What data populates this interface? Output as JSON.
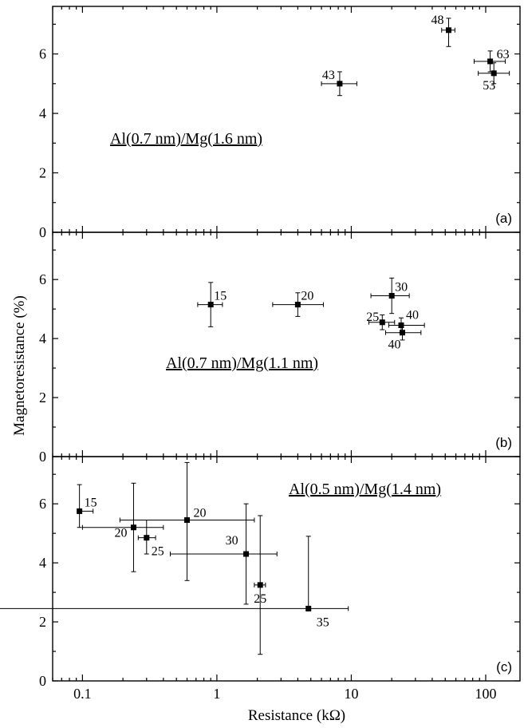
{
  "chart_data": [
    {
      "panel": "(a)",
      "type": "scatter",
      "annotation": "Al(0.7 nm)/Mg(1.6 nm)",
      "xscale": "log",
      "xlim": [
        0.06,
        180
      ],
      "ylim": [
        0,
        7.6
      ],
      "y_ticks": [
        "0",
        "2",
        "4",
        "6"
      ],
      "points": [
        {
          "label": "43",
          "x": 8.2,
          "y": 5.0,
          "xerr": [
            6.0,
            11.0
          ],
          "yerr": [
            4.6,
            5.4
          ]
        },
        {
          "label": "48",
          "x": 53,
          "y": 6.8,
          "xerr": [
            47,
            59
          ],
          "yerr": [
            6.25,
            7.2
          ]
        },
        {
          "label": "63",
          "x": 108,
          "y": 5.75,
          "xerr": [
            82,
            140
          ],
          "yerr": [
            5.4,
            6.1
          ]
        },
        {
          "label": "53",
          "x": 115,
          "y": 5.35,
          "xerr": [
            88,
            150
          ],
          "yerr": [
            5.0,
            5.7
          ]
        }
      ]
    },
    {
      "panel": "(b)",
      "type": "scatter",
      "annotation": "Al(0.7 nm)/Mg(1.1 nm)",
      "xscale": "log",
      "xlim": [
        0.06,
        180
      ],
      "ylim": [
        0,
        7.6
      ],
      "y_ticks": [
        "0",
        "2",
        "4",
        "6"
      ],
      "points": [
        {
          "label": "15",
          "x": 0.9,
          "y": 5.15,
          "xerr": [
            0.72,
            1.1
          ],
          "yerr": [
            4.4,
            5.9
          ]
        },
        {
          "label": "20",
          "x": 4.0,
          "y": 5.15,
          "xerr": [
            2.6,
            6.2
          ],
          "yerr": [
            4.75,
            5.55
          ]
        },
        {
          "label": "30",
          "x": 20,
          "y": 5.45,
          "xerr": [
            14,
            27
          ],
          "yerr": [
            4.85,
            6.05
          ]
        },
        {
          "label": "25",
          "x": 17,
          "y": 4.55,
          "xerr": [
            13.5,
            21
          ],
          "yerr": [
            4.3,
            4.8
          ]
        },
        {
          "label": "40",
          "x": 23.5,
          "y": 4.45,
          "xerr": [
            19,
            35
          ],
          "yerr": [
            4.2,
            4.7
          ]
        },
        {
          "label": "40",
          "x": 24,
          "y": 4.2,
          "xerr": [
            18,
            33
          ],
          "yerr": [
            3.95,
            4.45
          ]
        }
      ]
    },
    {
      "panel": "(c)",
      "type": "scatter",
      "annotation": "Al(0.5 nm)/Mg(1.4 nm)",
      "xscale": "log",
      "xlim": [
        0.06,
        180
      ],
      "ylim": [
        0,
        7.6
      ],
      "y_ticks": [
        "0",
        "2",
        "4",
        "6"
      ],
      "x_ticks": [
        "0.1",
        "1",
        "10",
        "100"
      ],
      "xlabel": "Resistance (kΩ)",
      "points": [
        {
          "label": "15",
          "x": 0.095,
          "y": 5.75,
          "xerr": [
            0.095,
            0.12
          ],
          "yerr": [
            5.2,
            6.65
          ]
        },
        {
          "label": "20",
          "x": 0.24,
          "y": 5.2,
          "xerr": [
            0.1,
            0.4
          ],
          "yerr": [
            3.7,
            6.7
          ]
        },
        {
          "label": "25",
          "x": 0.3,
          "y": 4.85,
          "xerr": [
            0.26,
            0.35
          ],
          "yerr": [
            4.3,
            5.45
          ]
        },
        {
          "label": "20",
          "x": 0.6,
          "y": 5.45,
          "xerr": [
            0.19,
            1.9
          ],
          "yerr": [
            3.4,
            7.4
          ]
        },
        {
          "label": "30",
          "x": 1.65,
          "y": 4.3,
          "xerr": [
            0.45,
            2.8
          ],
          "yerr": [
            2.6,
            6.0
          ]
        },
        {
          "label": "25",
          "x": 2.1,
          "y": 3.25,
          "xerr": [
            1.9,
            2.3
          ],
          "yerr": [
            0.9,
            5.6
          ]
        },
        {
          "label": "35",
          "x": 4.8,
          "y": 2.45,
          "xerr": [
            0.01,
            9.5
          ],
          "yerr": [
            2.4,
            4.9
          ]
        }
      ]
    }
  ],
  "shared": {
    "ylabel": "Magnetoresistance (%)"
  }
}
